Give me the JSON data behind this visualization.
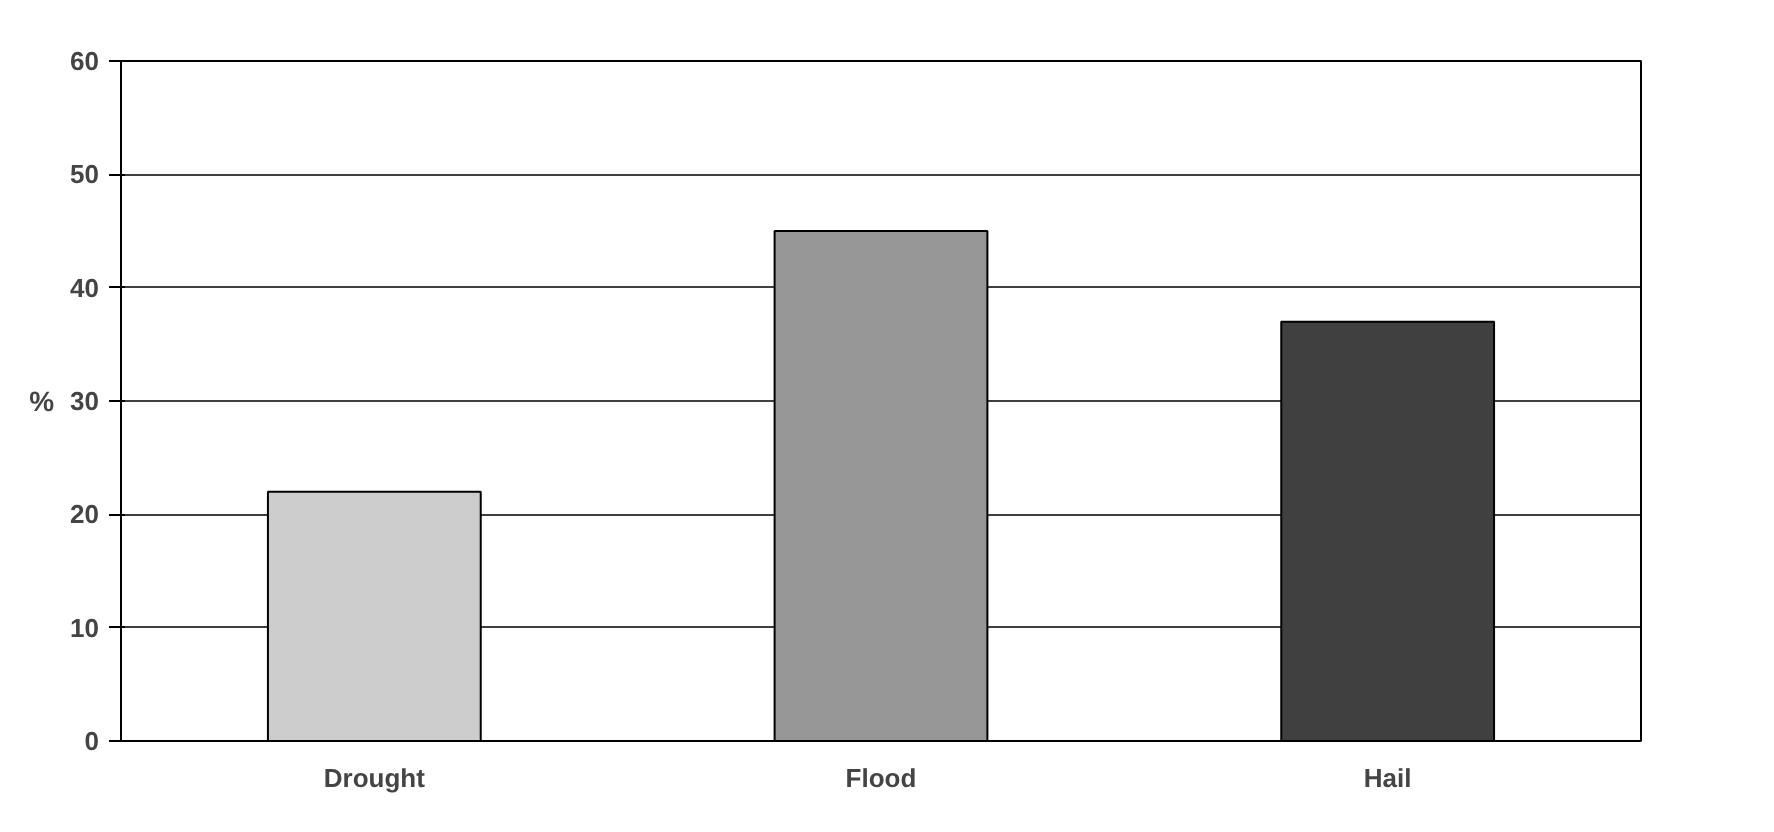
{
  "chart_data": {
    "type": "bar",
    "ylabel": "%",
    "categories": [
      "Drought",
      "Flood",
      "Hail"
    ],
    "values": [
      22,
      45,
      37
    ],
    "colors": [
      "#cccccc",
      "#969696",
      "#404040"
    ],
    "ylim": [
      0,
      60
    ],
    "yticks": [
      0,
      10,
      20,
      30,
      40,
      50,
      60
    ],
    "grid": "y"
  }
}
